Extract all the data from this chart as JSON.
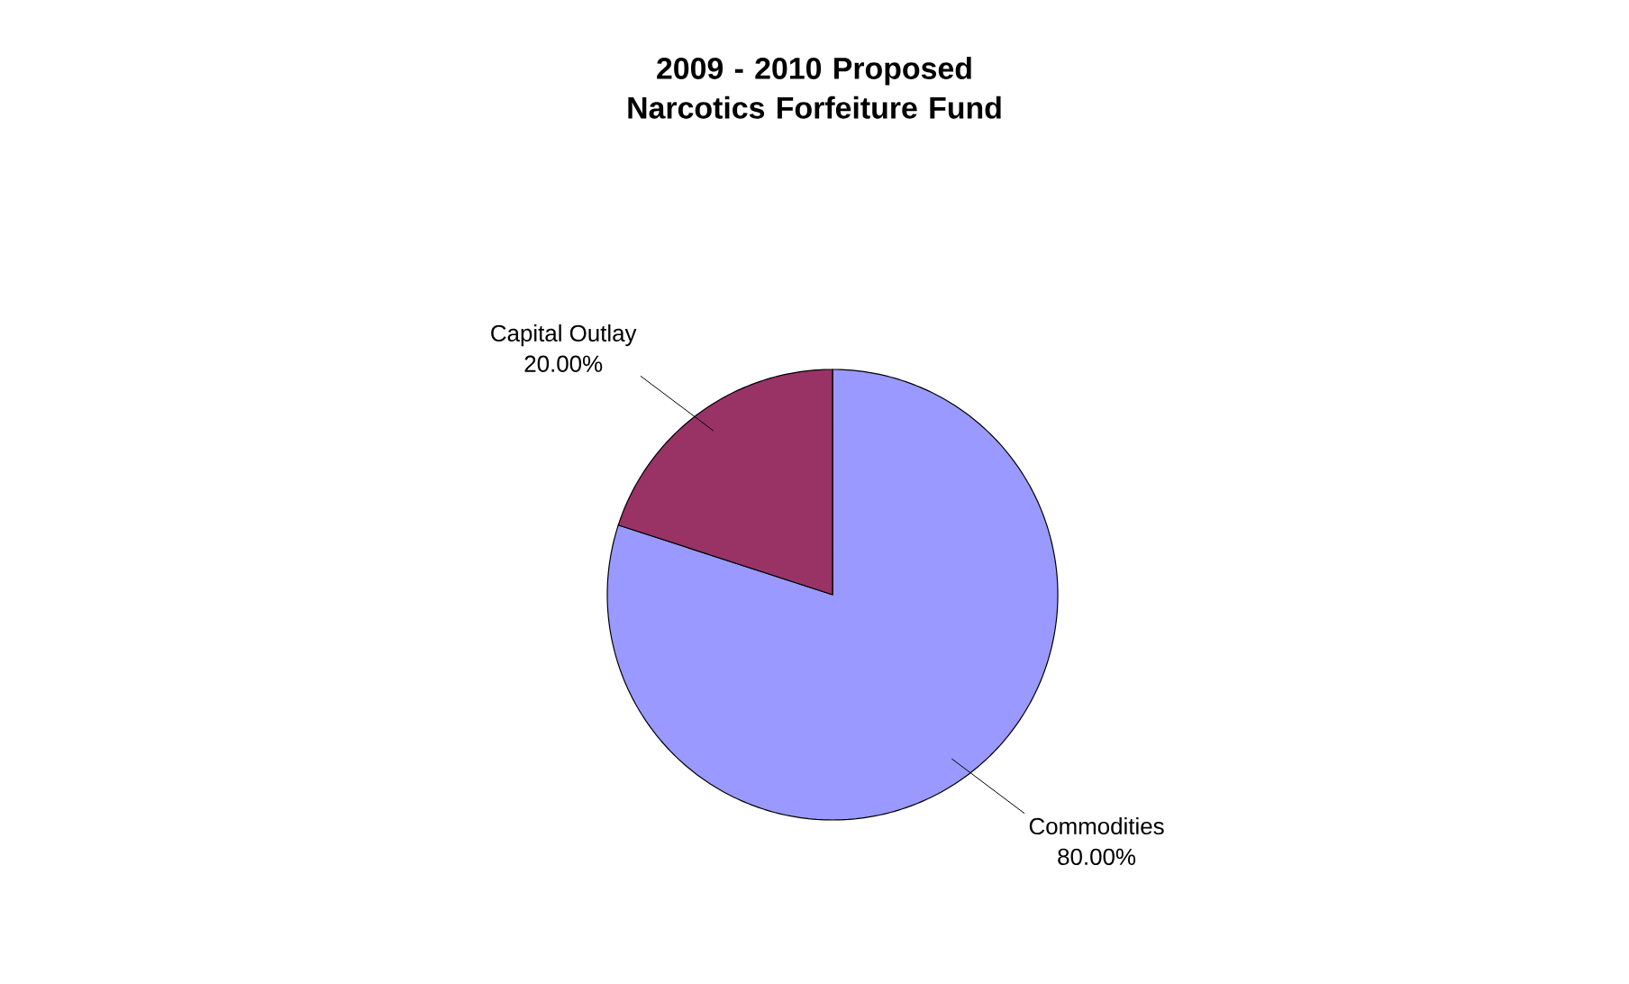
{
  "chart_data": {
    "type": "pie",
    "title": "2009 - 2010 Proposed Narcotics Forfeiture Fund",
    "categories": [
      "Commodities",
      "Capital Outlay"
    ],
    "values": [
      80,
      20
    ],
    "value_labels": [
      "80.00%",
      "20.00%"
    ],
    "colors": [
      "#9999ff",
      "#993366"
    ]
  }
}
